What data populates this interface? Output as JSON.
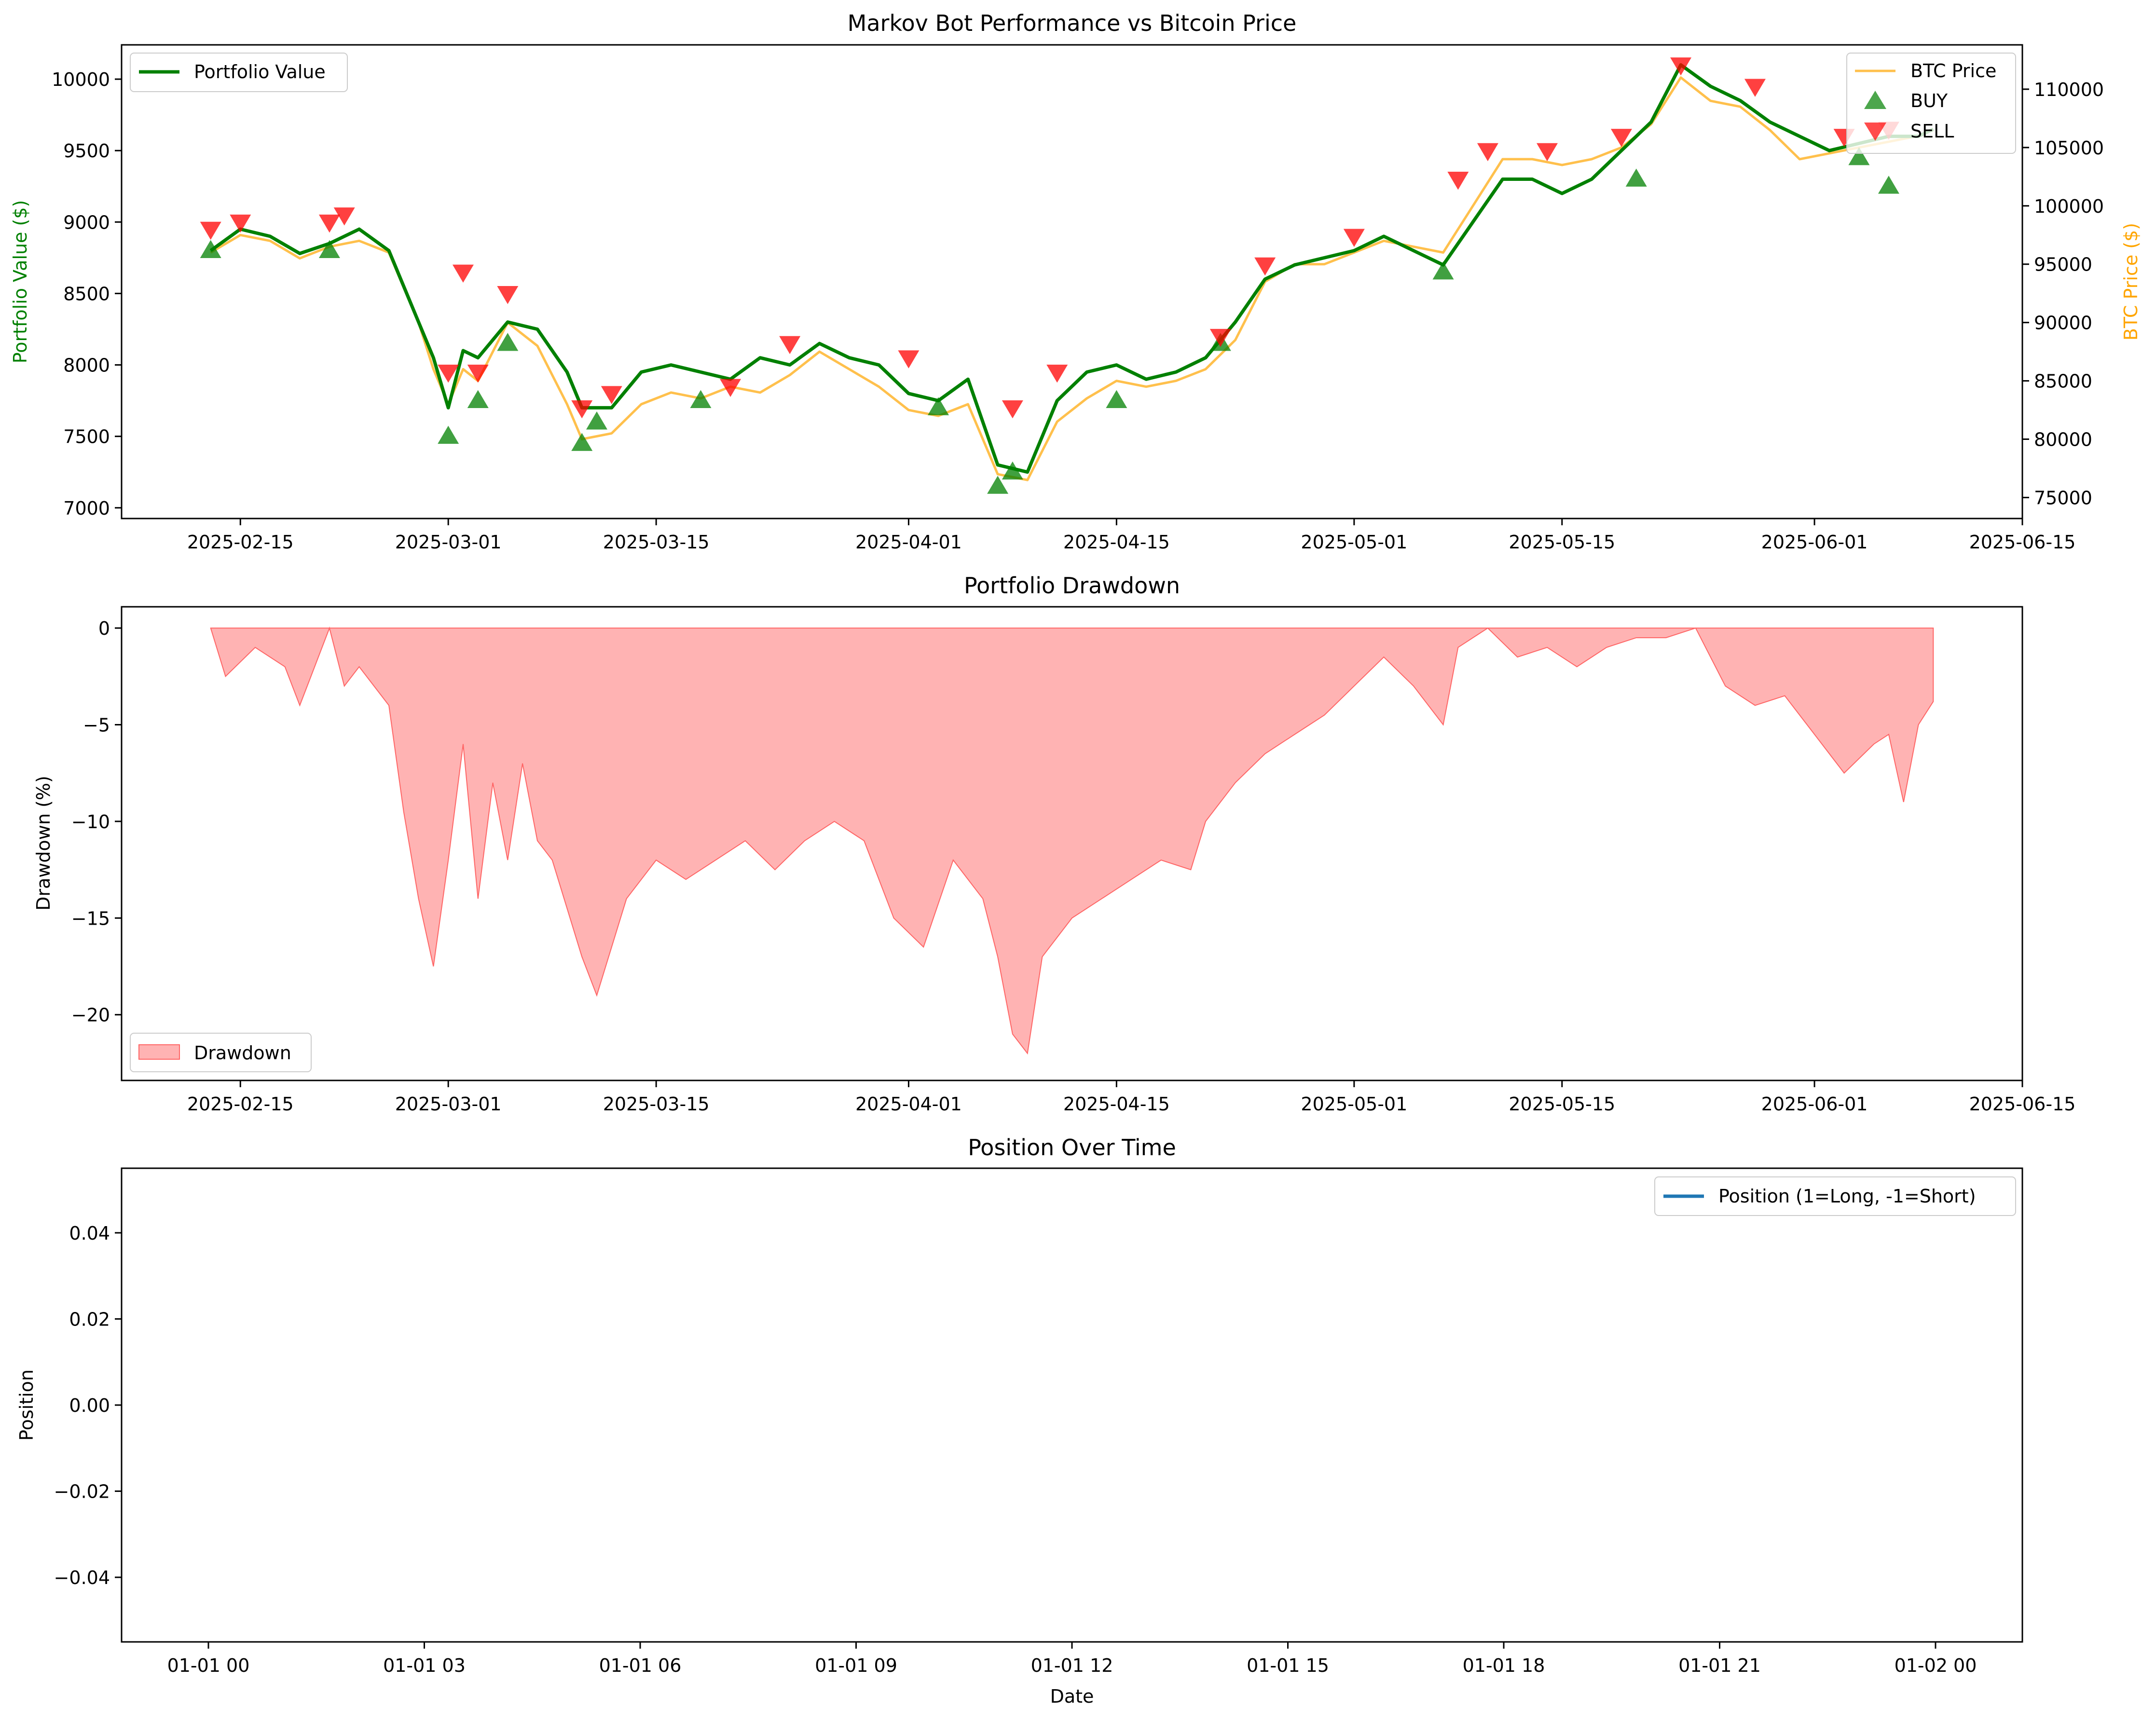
{
  "chart_data": [
    {
      "type": "line",
      "title": "Markov Bot Performance vs Bitcoin Price",
      "xlabel": "",
      "ylabel": "Portfolio Value ($)",
      "ylabel_right": "BTC Price ($)",
      "x_ticks": [
        "2025-02-15",
        "2025-03-01",
        "2025-03-15",
        "2025-04-01",
        "2025-04-15",
        "2025-05-01",
        "2025-05-15",
        "2025-06-01",
        "2025-06-15"
      ],
      "xlim": [
        "2025-02-07",
        "2025-06-15"
      ],
      "ylim": [
        6925,
        10240
      ],
      "y_ticks": [
        7000,
        7500,
        8000,
        8500,
        9000,
        9500,
        10000
      ],
      "ylim_right": [
        73200,
        113800
      ],
      "y_ticks_right": [
        75000,
        80000,
        85000,
        90000,
        95000,
        100000,
        105000,
        110000
      ],
      "grid": false,
      "legend_left": {
        "placement": "upper left",
        "entries": [
          "Portfolio Value"
        ]
      },
      "legend_right": {
        "placement": "upper right",
        "entries": [
          "BTC Price",
          "BUY",
          "SELL"
        ]
      },
      "colors": {
        "portfolio": "#008000",
        "btc": "#FFA500",
        "buy": "#008000",
        "sell": "#FF0000"
      },
      "x": [
        "2025-02-13",
        "2025-02-15",
        "2025-02-17",
        "2025-02-19",
        "2025-02-21",
        "2025-02-23",
        "2025-02-25",
        "2025-02-27",
        "2025-02-28",
        "2025-03-01",
        "2025-03-02",
        "2025-03-03",
        "2025-03-05",
        "2025-03-07",
        "2025-03-09",
        "2025-03-10",
        "2025-03-12",
        "2025-03-14",
        "2025-03-16",
        "2025-03-18",
        "2025-03-20",
        "2025-03-22",
        "2025-03-24",
        "2025-03-26",
        "2025-03-28",
        "2025-03-30",
        "2025-04-01",
        "2025-04-03",
        "2025-04-05",
        "2025-04-07",
        "2025-04-09",
        "2025-04-11",
        "2025-04-13",
        "2025-04-15",
        "2025-04-17",
        "2025-04-19",
        "2025-04-21",
        "2025-04-23",
        "2025-04-25",
        "2025-04-27",
        "2025-04-29",
        "2025-05-01",
        "2025-05-03",
        "2025-05-05",
        "2025-05-07",
        "2025-05-09",
        "2025-05-11",
        "2025-05-13",
        "2025-05-15",
        "2025-05-17",
        "2025-05-19",
        "2025-05-21",
        "2025-05-23",
        "2025-05-25",
        "2025-05-27",
        "2025-05-29",
        "2025-05-31",
        "2025-06-02",
        "2025-06-04",
        "2025-06-06",
        "2025-06-08",
        "2025-06-09"
      ],
      "series": [
        {
          "name": "Portfolio Value",
          "axis": "left",
          "values": [
            8800,
            8950,
            8900,
            8780,
            8850,
            8950,
            8800,
            8300,
            8050,
            7700,
            8100,
            8050,
            8300,
            8250,
            7950,
            7700,
            7700,
            7950,
            8000,
            7950,
            7900,
            8050,
            8000,
            8150,
            8050,
            8000,
            7800,
            7750,
            7900,
            7300,
            7250,
            7750,
            7950,
            8000,
            7900,
            7950,
            8050,
            8300,
            8600,
            8700,
            8750,
            8800,
            8900,
            8800,
            8700,
            9000,
            9300,
            9300,
            9200,
            9300,
            9500,
            9700,
            10100,
            9950,
            9850,
            9700,
            9600,
            9500,
            9550,
            9600,
            9600,
            9650
          ]
        },
        {
          "name": "BTC Price",
          "axis": "right",
          "values": [
            96000,
            97500,
            97000,
            95500,
            96500,
            97000,
            96000,
            90000,
            86000,
            83000,
            86000,
            85000,
            90000,
            88000,
            83000,
            80000,
            80500,
            83000,
            84000,
            83500,
            84500,
            84000,
            85500,
            87500,
            86000,
            84500,
            82500,
            82000,
            83000,
            77000,
            76500,
            81500,
            83500,
            85000,
            84500,
            85000,
            86000,
            88500,
            93500,
            95000,
            95000,
            96000,
            97000,
            96500,
            96000,
            100000,
            104000,
            104000,
            103500,
            104000,
            105000,
            107000,
            111000,
            109000,
            108500,
            106500,
            104000,
            104500,
            105000,
            105500,
            106000,
            106500
          ]
        }
      ],
      "buy_signals": {
        "name": "BUY",
        "x": [
          "2025-02-13",
          "2025-02-21",
          "2025-03-01",
          "2025-03-03",
          "2025-03-05",
          "2025-03-10",
          "2025-03-11",
          "2025-03-18",
          "2025-04-03",
          "2025-04-07",
          "2025-04-08",
          "2025-04-15",
          "2025-04-22",
          "2025-05-07",
          "2025-05-20",
          "2025-06-04",
          "2025-06-06"
        ],
        "y": [
          8800,
          8800,
          7500,
          7750,
          8150,
          7450,
          7600,
          7750,
          7700,
          7150,
          7250,
          7750,
          8150,
          8650,
          9300,
          9450,
          9250
        ]
      },
      "sell_signals": {
        "name": "SELL",
        "x": [
          "2025-02-13",
          "2025-02-15",
          "2025-02-21",
          "2025-02-22",
          "2025-03-01",
          "2025-03-02",
          "2025-03-03",
          "2025-03-05",
          "2025-03-10",
          "2025-03-12",
          "2025-03-20",
          "2025-03-24",
          "2025-04-01",
          "2025-04-08",
          "2025-04-11",
          "2025-04-22",
          "2025-04-25",
          "2025-05-01",
          "2025-05-08",
          "2025-05-10",
          "2025-05-14",
          "2025-05-19",
          "2025-05-23",
          "2025-05-28",
          "2025-06-03",
          "2025-06-06"
        ],
        "y": [
          8950,
          9000,
          9000,
          9050,
          7950,
          8650,
          7950,
          8500,
          7700,
          7800,
          7850,
          8150,
          8050,
          7700,
          7950,
          8200,
          8700,
          8900,
          9300,
          9500,
          9500,
          9600,
          10100,
          9950,
          9600,
          9650
        ]
      }
    },
    {
      "type": "area",
      "title": "Portfolio Drawdown",
      "xlabel": "",
      "ylabel": "Drawdown (%)",
      "x_ticks": [
        "2025-02-15",
        "2025-03-01",
        "2025-03-15",
        "2025-04-01",
        "2025-04-15",
        "2025-05-01",
        "2025-05-15",
        "2025-06-01",
        "2025-06-15"
      ],
      "xlim": [
        "2025-02-07",
        "2025-06-15"
      ],
      "ylim": [
        -23.4,
        1.1
      ],
      "y_ticks": [
        0,
        -5,
        -10,
        -15,
        -20
      ],
      "grid": false,
      "legend": {
        "placement": "lower left",
        "entries": [
          "Drawdown"
        ]
      },
      "colors": {
        "fill": "#FF9999",
        "edge": "#FF6666"
      },
      "x": [
        "2025-02-13",
        "2025-02-14",
        "2025-02-16",
        "2025-02-18",
        "2025-02-19",
        "2025-02-20",
        "2025-02-21",
        "2025-02-22",
        "2025-02-23",
        "2025-02-25",
        "2025-02-26",
        "2025-02-27",
        "2025-02-28",
        "2025-03-01",
        "2025-03-02",
        "2025-03-03",
        "2025-03-04",
        "2025-03-05",
        "2025-03-06",
        "2025-03-07",
        "2025-03-08",
        "2025-03-10",
        "2025-03-11",
        "2025-03-13",
        "2025-03-15",
        "2025-03-17",
        "2025-03-19",
        "2025-03-21",
        "2025-03-23",
        "2025-03-25",
        "2025-03-27",
        "2025-03-29",
        "2025-03-31",
        "2025-04-02",
        "2025-04-04",
        "2025-04-06",
        "2025-04-07",
        "2025-04-08",
        "2025-04-09",
        "2025-04-10",
        "2025-04-12",
        "2025-04-14",
        "2025-04-16",
        "2025-04-18",
        "2025-04-20",
        "2025-04-21",
        "2025-04-23",
        "2025-04-25",
        "2025-04-27",
        "2025-04-29",
        "2025-05-01",
        "2025-05-03",
        "2025-05-05",
        "2025-05-07",
        "2025-05-08",
        "2025-05-10",
        "2025-05-12",
        "2025-05-14",
        "2025-05-16",
        "2025-05-18",
        "2025-05-20",
        "2025-05-22",
        "2025-05-24",
        "2025-05-26",
        "2025-05-28",
        "2025-05-30",
        "2025-06-01",
        "2025-06-03",
        "2025-06-05",
        "2025-06-06",
        "2025-06-07",
        "2025-06-08",
        "2025-06-09"
      ],
      "values": [
        0,
        -2.5,
        -1.0,
        -2.0,
        -4.0,
        -2.0,
        0,
        -3.0,
        -2.0,
        -4.0,
        -9.5,
        -14.0,
        -17.5,
        -12.0,
        -6.0,
        -14.0,
        -8.0,
        -12.0,
        -7.0,
        -11.0,
        -12.0,
        -17.0,
        -19.0,
        -14.0,
        -12.0,
        -13.0,
        -12.0,
        -11.0,
        -12.5,
        -11.0,
        -10.0,
        -11.0,
        -15.0,
        -16.5,
        -12.0,
        -14.0,
        -17.0,
        -21.0,
        -22.0,
        -17.0,
        -15.0,
        -14.0,
        -13.0,
        -12.0,
        -12.5,
        -10.0,
        -8.0,
        -6.5,
        -5.5,
        -4.5,
        -3.0,
        -1.5,
        -3.0,
        -5.0,
        -1.0,
        0,
        -1.5,
        -1.0,
        -2.0,
        -1.0,
        -0.5,
        -0.5,
        0,
        -3.0,
        -4.0,
        -3.5,
        -5.5,
        -7.5,
        -6.0,
        -5.5,
        -9.0,
        -5.0,
        -3.8
      ]
    },
    {
      "type": "line",
      "title": "Position Over Time",
      "xlabel": "Date",
      "ylabel": "Position",
      "x_ticks": [
        "01-01 00",
        "01-01 03",
        "01-01 06",
        "01-01 09",
        "01-01 12",
        "01-01 15",
        "01-01 18",
        "01-01 21",
        "01-02 00"
      ],
      "ylim": [
        -0.055,
        0.055
      ],
      "y_ticks": [
        0.04,
        0.02,
        0.0,
        -0.02,
        -0.04
      ],
      "y_tick_labels": [
        "0.04",
        "0.02",
        "0.00",
        "−0.02",
        "−0.04"
      ],
      "grid": false,
      "legend": {
        "placement": "upper right",
        "entries": [
          "Position (1=Long, -1=Short)"
        ]
      },
      "colors": {
        "line": "#1F77B4"
      },
      "series": [
        {
          "name": "Position (1=Long, -1=Short)",
          "values": []
        }
      ]
    }
  ]
}
